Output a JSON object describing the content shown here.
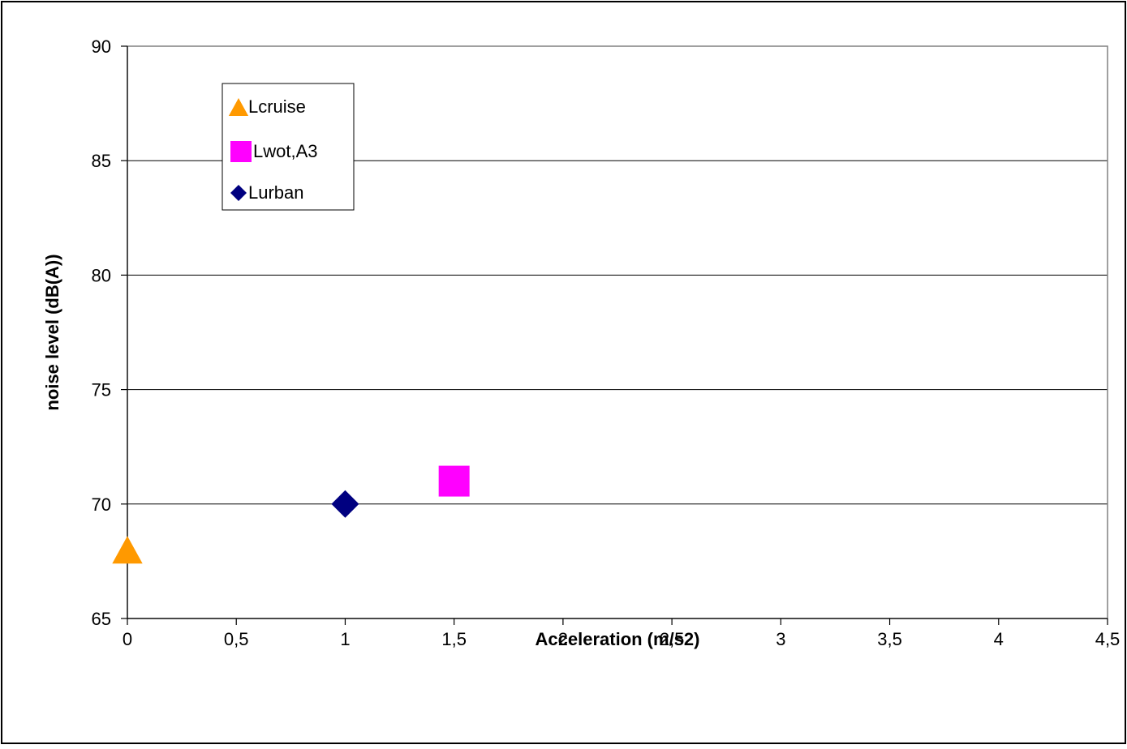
{
  "chart_data": {
    "type": "scatter",
    "title": "",
    "xlabel": "Acceleration (m/s2)",
    "ylabel": "noise level (dB(A))",
    "xlim": [
      0,
      4.5
    ],
    "ylim": [
      65,
      90
    ],
    "x_ticks": [
      0,
      0.5,
      1,
      1.5,
      2,
      2.5,
      3,
      3.5,
      4,
      4.5
    ],
    "x_tick_labels": [
      "0",
      "0,5",
      "1",
      "1,5",
      "2",
      "2,5",
      "3",
      "3,5",
      "4",
      "4,5"
    ],
    "y_ticks": [
      65,
      70,
      75,
      80,
      85,
      90
    ],
    "y_tick_labels": [
      "65",
      "70",
      "75",
      "80",
      "85",
      "90"
    ],
    "grid": "horizontal",
    "legend_position": "top-left",
    "series": [
      {
        "name": "Lcruise",
        "marker": "triangle",
        "color": "#ff9900",
        "points": [
          {
            "x": 0,
            "y": 68
          }
        ]
      },
      {
        "name": "Lwot,A3",
        "marker": "square",
        "color": "#ff00ff",
        "points": [
          {
            "x": 1.5,
            "y": 71
          }
        ]
      },
      {
        "name": "Lurban",
        "marker": "diamond",
        "color": "#000080",
        "points": [
          {
            "x": 1,
            "y": 70
          }
        ]
      }
    ]
  }
}
